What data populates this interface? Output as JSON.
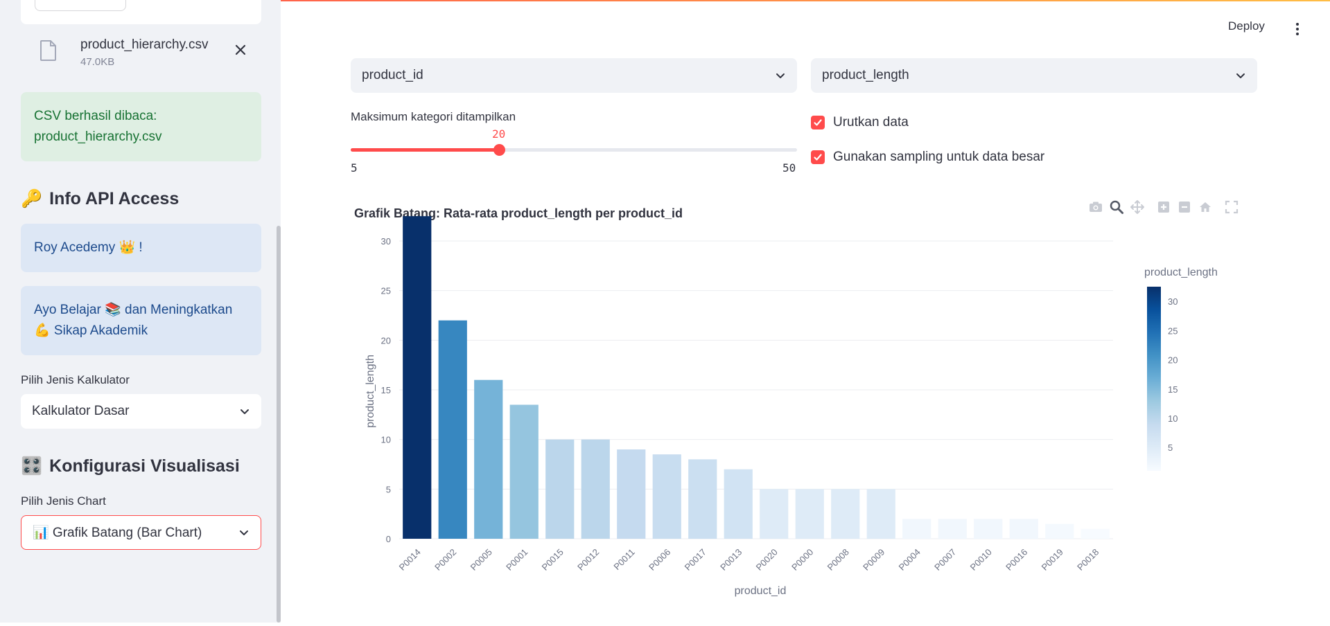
{
  "sidebar": {
    "file": {
      "name": "product_hierarchy.csv",
      "size": "47.0KB",
      "icon": "file-icon"
    },
    "success_message": [
      "CSV berhasil dibaca:",
      "product_hierarchy.csv"
    ],
    "api_section": {
      "icon": "🔑",
      "title": "Info API Access"
    },
    "info_box_1": "Roy Acedemy 👑 !",
    "info_box_2": [
      "Ayo Belajar 📚 dan Meningkatkan",
      "💪 Sikap Akademik"
    ],
    "calculator": {
      "label": "Pilih Jenis Kalkulator",
      "value": "Kalkulator Dasar"
    },
    "viz_section": {
      "icon": "🎛️",
      "title": "Konfigurasi Visualisasi"
    },
    "chart_type": {
      "label": "Pilih Jenis Chart",
      "value": "📊 Grafik Batang (Bar Chart)"
    }
  },
  "header": {
    "deploy_label": "Deploy"
  },
  "controls": {
    "x_select": "product_id",
    "y_select": "product_length",
    "slider": {
      "label": "Maksimum kategori ditampilkan",
      "value": "20",
      "min": "5",
      "max": "50",
      "fraction": 0.3333
    },
    "checkbox_sort": {
      "label": "Urutkan data",
      "checked": true
    },
    "checkbox_sampling": {
      "label": "Gunakan sampling untuk data besar",
      "checked": true
    }
  },
  "colors": {
    "accent": "#ff4b4b",
    "success_bg": "#dfefe3",
    "info_bg": "#dde7f5",
    "sidebar_bg": "#f0f2f6"
  },
  "chart_data": {
    "type": "bar",
    "title": "Grafik Batang: Rata-rata product_length per product_id",
    "xlabel": "product_id",
    "ylabel": "product_length",
    "categories": [
      "P0014",
      "P0002",
      "P0005",
      "P0001",
      "P0015",
      "P0012",
      "P0011",
      "P0006",
      "P0017",
      "P0013",
      "P0020",
      "P0000",
      "P0008",
      "P0009",
      "P0004",
      "P0007",
      "P0010",
      "P0016",
      "P0019",
      "P0018"
    ],
    "values": [
      32.5,
      22,
      16,
      13.5,
      10,
      10,
      9,
      8.5,
      8,
      7,
      5,
      5,
      5,
      5,
      2,
      2,
      2,
      2,
      1.5,
      1
    ],
    "ylim": [
      0,
      33
    ],
    "yticks": [
      0,
      5,
      10,
      15,
      20,
      25,
      30
    ],
    "colorscale": "Blues",
    "colorbar": {
      "title": "product_length",
      "ticks": [
        5,
        10,
        15,
        20,
        25,
        30
      ]
    },
    "grid": true
  }
}
